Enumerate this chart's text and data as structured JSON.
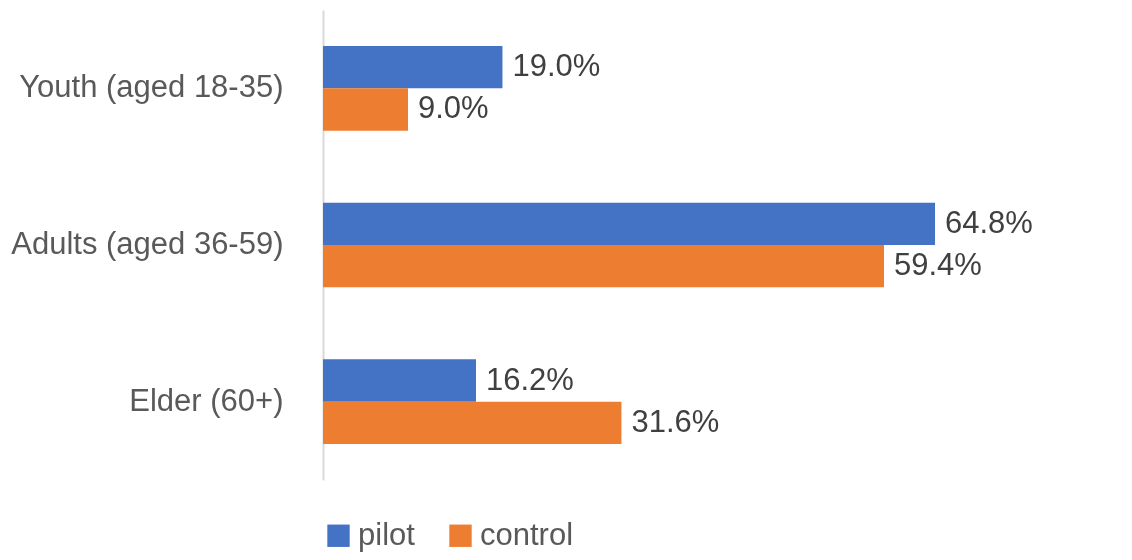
{
  "chart_data": {
    "type": "bar",
    "orientation": "horizontal",
    "categories": [
      "Youth (aged 18-35)",
      "Adults (aged 36-59)",
      "Elder (60+)"
    ],
    "series": [
      {
        "name": "pilot",
        "color": "#4472c4",
        "values": [
          19.0,
          64.8,
          16.2
        ],
        "value_labels": [
          "19.0%",
          "64.8%",
          "16.2%"
        ]
      },
      {
        "name": "control",
        "color": "#ed7d31",
        "values": [
          9.0,
          59.4,
          31.6
        ],
        "value_labels": [
          "9.0%",
          "59.4%",
          "31.6%"
        ]
      }
    ],
    "legend": "bottom"
  }
}
